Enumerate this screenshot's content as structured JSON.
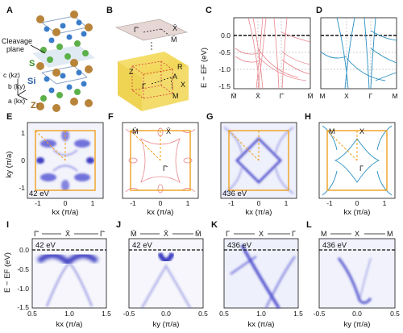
{
  "figure": {
    "panel_labels": [
      "A",
      "B",
      "C",
      "D",
      "E",
      "F",
      "G",
      "H",
      "I",
      "J",
      "K",
      "L"
    ],
    "crystal": {
      "cleavage": "Cleavage\nplane",
      "atoms": [
        "S",
        "Si",
        "Zr"
      ],
      "axes": [
        "c (kz)",
        "b (ky)",
        "a (kx)"
      ]
    },
    "bz": {
      "surface_points": [
        "Γ̄",
        "X̄",
        "M̄"
      ],
      "bulk_points": [
        "Z",
        "R",
        "A",
        "X",
        "Γ",
        "M"
      ]
    },
    "band_panels": {
      "C": {
        "ylabel": "E − EF (eV)",
        "yticks": [
          "0.0",
          "-0.5",
          "-1.0",
          "-1.5"
        ],
        "xticks": [
          "M̄",
          "X̄",
          "Γ̄",
          "M̄"
        ],
        "color": "#e8888e"
      },
      "D": {
        "xticks": [
          "M",
          "X",
          "Γ",
          "M"
        ],
        "color": "#2a8fc0"
      }
    },
    "fermi_panels": [
      {
        "id": "E",
        "energy": "42 eV",
        "xlabel": "kx (π/a)",
        "ylabel": "ky (π/a)",
        "ticks": [
          "-1",
          "0",
          "1"
        ],
        "points": []
      },
      {
        "id": "F",
        "energy": "",
        "xlabel": "kx (π/a)",
        "ticks": [
          "-1",
          "0",
          "1"
        ],
        "points": [
          "M̄",
          "X̄",
          "Γ̄"
        ]
      },
      {
        "id": "G",
        "energy": "436 eV",
        "xlabel": "kx (π/a)",
        "ticks": [
          "-1",
          "0",
          "1"
        ],
        "points": []
      },
      {
        "id": "H",
        "energy": "",
        "xlabel": "kx (π/a)",
        "ticks": [
          "-1",
          "0",
          "1"
        ],
        "points": [
          "M",
          "X",
          "Γ"
        ]
      }
    ],
    "cut_panels": [
      {
        "id": "I",
        "energy": "42 eV",
        "xlabel": "kx (π/a)",
        "xticks": [
          "0.5",
          "1.0",
          "1.5"
        ],
        "path": [
          "Γ̄",
          "X̄",
          "Γ̄"
        ],
        "ylabel": "E − EF (eV)",
        "yticks": [
          "0.0",
          "-0.5",
          "-1.0",
          "-1.5"
        ]
      },
      {
        "id": "J",
        "energy": "42 eV",
        "xlabel": "ky (π/a)",
        "xticks": [
          "-0.5",
          "0.0",
          "0.5"
        ],
        "path": [
          "M̄",
          "X̄",
          "M̄"
        ]
      },
      {
        "id": "K",
        "energy": "436 eV",
        "xlabel": "kx (π/a)",
        "xticks": [
          "0.5",
          "1.0",
          "1.5"
        ],
        "path": [
          "Γ",
          "X",
          "Γ"
        ]
      },
      {
        "id": "L",
        "energy": "436 eV",
        "xlabel": "ky (π/a)",
        "xticks": [
          "-0.5",
          "0.0",
          "0.5"
        ],
        "path": [
          "M",
          "X",
          "M"
        ]
      }
    ]
  }
}
